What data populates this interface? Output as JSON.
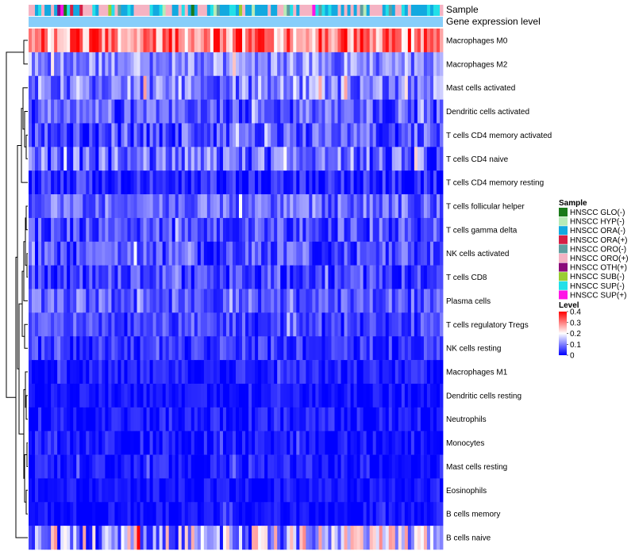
{
  "chart_data": {
    "type": "heatmap",
    "title": "",
    "annotations": {
      "sample_label": "Sample",
      "level_label": "Gene expression level",
      "level_color": "#87CEFA"
    },
    "rows": [
      {
        "name": "Macrophages M0",
        "mean": 0.3,
        "spread": 0.1
      },
      {
        "name": "Macrophages M2",
        "mean": 0.11,
        "spread": 0.07
      },
      {
        "name": "Mast cells activated",
        "mean": 0.1,
        "spread": 0.08
      },
      {
        "name": "Dendritic cells activated",
        "mean": 0.07,
        "spread": 0.07
      },
      {
        "name": "T cells CD4 memory activated",
        "mean": 0.06,
        "spread": 0.07
      },
      {
        "name": "T cells CD4 naive",
        "mean": 0.08,
        "spread": 0.08
      },
      {
        "name": "T cells CD4 memory resting",
        "mean": 0.03,
        "spread": 0.05
      },
      {
        "name": "T cells follicular helper",
        "mean": 0.08,
        "spread": 0.06
      },
      {
        "name": "T cells gamma delta",
        "mean": 0.06,
        "spread": 0.06
      },
      {
        "name": "NK cells activated",
        "mean": 0.06,
        "spread": 0.06
      },
      {
        "name": "T cells CD8",
        "mean": 0.05,
        "spread": 0.06
      },
      {
        "name": "Plasma cells",
        "mean": 0.07,
        "spread": 0.06
      },
      {
        "name": "T cells regulatory  Tregs",
        "mean": 0.05,
        "spread": 0.05
      },
      {
        "name": "NK cells resting",
        "mean": 0.04,
        "spread": 0.05
      },
      {
        "name": "Macrophages M1",
        "mean": 0.02,
        "spread": 0.04
      },
      {
        "name": "Dendritic cells resting",
        "mean": 0.01,
        "spread": 0.03
      },
      {
        "name": "Neutrophils",
        "mean": 0.015,
        "spread": 0.04
      },
      {
        "name": "Monocytes",
        "mean": 0.015,
        "spread": 0.04
      },
      {
        "name": "Mast cells resting",
        "mean": 0.015,
        "spread": 0.04
      },
      {
        "name": "Eosinophils",
        "mean": 0.01,
        "spread": 0.03
      },
      {
        "name": "B cells memory",
        "mean": 0.01,
        "spread": 0.03
      },
      {
        "name": "B cells naive",
        "mean": 0.14,
        "spread": 0.14
      }
    ],
    "n_samples": 130,
    "color_scale": {
      "title": "Level",
      "min": 0,
      "max": 0.4,
      "ticks": [
        0,
        0.1,
        0.2,
        0.3,
        0.4
      ],
      "colors": [
        "#0000FF",
        "#FFFFFF",
        "#FF0000"
      ]
    },
    "sample_legend": {
      "title": "Sample",
      "entries": [
        {
          "label": "HNSCC GLO(-)",
          "color": "#1A7A1A"
        },
        {
          "label": "HNSCC HYP(-)",
          "color": "#B7EBB7"
        },
        {
          "label": "HNSCC ORA(-)",
          "color": "#12A9E0"
        },
        {
          "label": "HNSCC ORA(+)",
          "color": "#D61F45"
        },
        {
          "label": "HNSCC ORO(-)",
          "color": "#5F9EA0"
        },
        {
          "label": "HNSCC ORO(+)",
          "color": "#F5B3C3"
        },
        {
          "label": "HNSCC OTH(+)",
          "color": "#8B0A7A"
        },
        {
          "label": "HNSCC SUB(-)",
          "color": "#9ACD32"
        },
        {
          "label": "HNSCC SUP(-)",
          "color": "#22E0E8"
        },
        {
          "label": "HNSCC SUP(+)",
          "color": "#FF14E6"
        }
      ]
    },
    "sample_sequence_weights": [
      0.04,
      0.04,
      0.3,
      0.03,
      0.05,
      0.3,
      0.02,
      0.03,
      0.17,
      0.02
    ]
  }
}
